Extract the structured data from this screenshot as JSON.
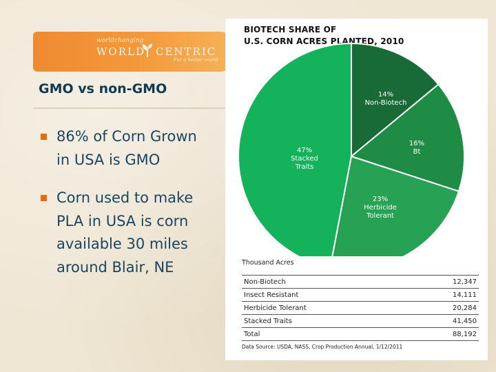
{
  "logo": {
    "tagline": "worldchanging",
    "word1": "WORLD",
    "word2": "CENTRIC",
    "subline": "For a better world",
    "color": "#ef8a2f"
  },
  "slide": {
    "title": "GMO vs non-GMO",
    "bullets": [
      "86% of Corn Grown in USA is GMO",
      "Corn used to make PLA in USA is corn available 30 miles around Blair, NE"
    ]
  },
  "chart_data": {
    "type": "pie",
    "title_lines": [
      "BIOTECH SHARE OF",
      "U.S. CORN ACRES PLANTED, 2010"
    ],
    "slices": [
      {
        "pct_label": "14%",
        "name_lines": [
          "Non-Biotech"
        ],
        "value": 14,
        "color": "#186b37"
      },
      {
        "pct_label": "16%",
        "name_lines": [
          "Bt"
        ],
        "value": 16,
        "color": "#1e8c45"
      },
      {
        "pct_label": "23%",
        "name_lines": [
          "Herbicide",
          "Tolerant"
        ],
        "value": 23,
        "color": "#27a254"
      },
      {
        "pct_label": "47%",
        "name_lines": [
          "Stacked",
          "Traits"
        ],
        "value": 47,
        "color": "#14b35b"
      }
    ],
    "table": {
      "units_label": "Thousand Acres",
      "rows": [
        {
          "label": "Non-Biotech",
          "value": "12,347"
        },
        {
          "label": "Insect Resistant",
          "value": "14,111"
        },
        {
          "label": "Herbicide Tolerant",
          "value": "20,284"
        },
        {
          "label": "Stacked Traits",
          "value": "41,450"
        },
        {
          "label": "Total",
          "value": "88,192"
        }
      ]
    },
    "source": "Data Source: USDA, NASS, Crop Production Annual, 1/12/2011"
  }
}
